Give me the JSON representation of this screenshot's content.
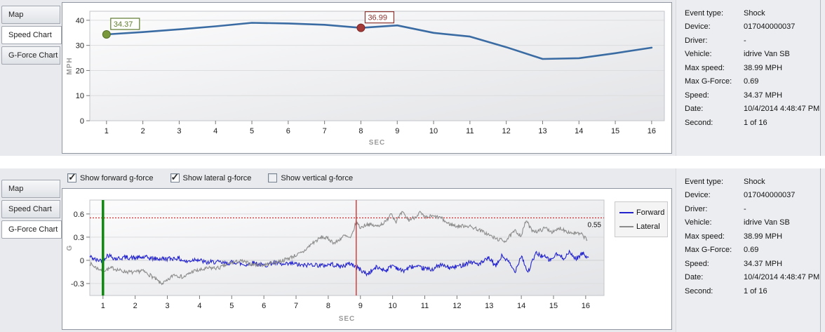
{
  "event_details": {
    "rows": [
      {
        "label": "Event type:",
        "value": "Shock"
      },
      {
        "label": "Device:",
        "value": "017040000037"
      },
      {
        "label": "Driver:",
        "value": "-"
      },
      {
        "label": "Vehicle:",
        "value": "idrive Van SB"
      },
      {
        "label": "Max speed:",
        "value": "38.99 MPH"
      },
      {
        "label": "Max G-Force:",
        "value": "0.69"
      },
      {
        "label": "Speed:",
        "value": "34.37 MPH"
      },
      {
        "label": "Date:",
        "value": "10/4/2014 4:48:47 PM"
      },
      {
        "label": "Second:",
        "value": "1 of 16"
      }
    ]
  },
  "top_panel": {
    "tabs": [
      {
        "label": "Map",
        "selected": false
      },
      {
        "label": "Speed Chart",
        "selected": true
      },
      {
        "label": "G-Force Chart",
        "selected": false
      }
    ],
    "chart_data": {
      "type": "line",
      "xlabel": "SEC",
      "ylabel": "MPH",
      "x": [
        1,
        2,
        3,
        4,
        5,
        6,
        7,
        8,
        9,
        10,
        11,
        12,
        13,
        14,
        15,
        16
      ],
      "values": [
        34.37,
        35.3,
        36.4,
        37.6,
        38.99,
        38.75,
        38.2,
        36.99,
        37.95,
        35.0,
        33.5,
        29.3,
        24.6,
        24.9,
        26.9,
        29.1
      ],
      "line_color": "#3a6ca3",
      "yticks": [
        0,
        10,
        20,
        30,
        40
      ],
      "xlim": [
        0.54,
        16.35
      ],
      "ylim": [
        0,
        43.6
      ],
      "markers": [
        {
          "x": 1,
          "y": 34.37,
          "label": "34.37",
          "fill": "#79973b",
          "stroke": "#55702a",
          "label_color": "#5e7b2e"
        },
        {
          "x": 8,
          "y": 36.99,
          "label": "36.99",
          "fill": "#a33a38",
          "stroke": "#7e2a28",
          "label_color": "#8c3431"
        }
      ]
    }
  },
  "bottom_panel": {
    "tabs": [
      {
        "label": "Map",
        "selected": false
      },
      {
        "label": "Speed Chart",
        "selected": false
      },
      {
        "label": "G-Force Chart",
        "selected": true
      }
    ],
    "checkboxes": [
      {
        "label": "Show forward g-force",
        "checked": true
      },
      {
        "label": "Show lateral g-force",
        "checked": true
      },
      {
        "label": "Show vertical g-force",
        "checked": false
      }
    ],
    "legend": [
      {
        "name": "Forward",
        "color": "#2424cf"
      },
      {
        "name": "Lateral",
        "color": "#8c8c8c"
      }
    ],
    "chart_data": {
      "type": "line",
      "xlabel": "SEC",
      "ylabel": "G",
      "yticks": [
        -0.3,
        0,
        0.3,
        0.6
      ],
      "xticks": [
        1,
        2,
        3,
        4,
        5,
        6,
        7,
        8,
        9,
        10,
        11,
        12,
        13,
        14,
        15,
        16
      ],
      "xlim": [
        0.59,
        16.57
      ],
      "ylim": [
        -0.455,
        0.78
      ],
      "annotations": {
        "green_vline_x": 1.0,
        "green_vline_color": "#0d8a0d",
        "red_vline_x": 8.87,
        "red_vline_color": "#cc2a2a",
        "threshold": {
          "y": 0.55,
          "label": "0.55",
          "color": "#cc0000"
        }
      },
      "series": [
        {
          "name": "Forward",
          "color": "#2424cf",
          "noise": 0.03,
          "seed": 42,
          "range": [
            0.59,
            16.1
          ],
          "keyframes": [
            [
              0.59,
              0.05
            ],
            [
              0.8,
              0.0
            ],
            [
              1.0,
              0.01
            ],
            [
              1.15,
              0.07
            ],
            [
              1.4,
              0.02
            ],
            [
              1.7,
              0.04
            ],
            [
              2.0,
              0.03
            ],
            [
              2.3,
              0.04
            ],
            [
              2.6,
              0.02
            ],
            [
              3.0,
              0.02
            ],
            [
              3.3,
              0.03
            ],
            [
              3.6,
              -0.02
            ],
            [
              3.9,
              0.02
            ],
            [
              4.2,
              -0.03
            ],
            [
              4.5,
              -0.02
            ],
            [
              4.8,
              -0.04
            ],
            [
              5.1,
              -0.02
            ],
            [
              5.4,
              -0.06
            ],
            [
              5.7,
              -0.03
            ],
            [
              6.0,
              -0.07
            ],
            [
              6.3,
              -0.03
            ],
            [
              6.6,
              -0.06
            ],
            [
              6.9,
              -0.04
            ],
            [
              7.2,
              -0.07
            ],
            [
              7.5,
              -0.05
            ],
            [
              7.8,
              -0.07
            ],
            [
              8.1,
              -0.05
            ],
            [
              8.4,
              -0.08
            ],
            [
              8.7,
              -0.04
            ],
            [
              9.0,
              -0.12
            ],
            [
              9.2,
              -0.18
            ],
            [
              9.5,
              -0.09
            ],
            [
              9.8,
              -0.13
            ],
            [
              10.0,
              -0.06
            ],
            [
              10.3,
              -0.14
            ],
            [
              10.6,
              -0.08
            ],
            [
              10.9,
              -0.1
            ],
            [
              11.2,
              -0.12
            ],
            [
              11.5,
              -0.06
            ],
            [
              11.8,
              -0.1
            ],
            [
              12.1,
              -0.07
            ],
            [
              12.4,
              -0.02
            ],
            [
              12.7,
              -0.05
            ],
            [
              13.0,
              0.03
            ],
            [
              13.2,
              -0.08
            ],
            [
              13.4,
              0.06
            ],
            [
              13.6,
              -0.02
            ],
            [
              13.8,
              -0.15
            ],
            [
              14.0,
              0.07
            ],
            [
              14.2,
              -0.16
            ],
            [
              14.45,
              0.09
            ],
            [
              14.7,
              0.05
            ],
            [
              14.9,
              0.0
            ],
            [
              15.1,
              0.08
            ],
            [
              15.3,
              0.03
            ],
            [
              15.5,
              0.1
            ],
            [
              15.7,
              0.02
            ],
            [
              15.9,
              0.09
            ],
            [
              16.1,
              0.04
            ]
          ]
        },
        {
          "name": "Lateral",
          "color": "#8c8c8c",
          "noise": 0.025,
          "seed": 7,
          "range": [
            0.59,
            16.05
          ],
          "keyframes": [
            [
              0.59,
              -0.04
            ],
            [
              0.8,
              -0.1
            ],
            [
              1.0,
              -0.13
            ],
            [
              1.3,
              -0.1
            ],
            [
              1.6,
              -0.14
            ],
            [
              2.0,
              -0.16
            ],
            [
              2.2,
              -0.13
            ],
            [
              2.5,
              -0.2
            ],
            [
              2.8,
              -0.3
            ],
            [
              3.0,
              -0.27
            ],
            [
              3.2,
              -0.18
            ],
            [
              3.5,
              -0.22
            ],
            [
              3.8,
              -0.14
            ],
            [
              4.0,
              -0.13
            ],
            [
              4.3,
              -0.1
            ],
            [
              4.6,
              -0.1
            ],
            [
              5.0,
              -0.03
            ],
            [
              5.3,
              -0.01
            ],
            [
              5.6,
              -0.05
            ],
            [
              6.0,
              -0.06
            ],
            [
              6.3,
              -0.03
            ],
            [
              6.6,
              0.0
            ],
            [
              6.9,
              0.05
            ],
            [
              7.2,
              0.1
            ],
            [
              7.5,
              0.22
            ],
            [
              7.8,
              0.3
            ],
            [
              8.0,
              0.28
            ],
            [
              8.2,
              0.22
            ],
            [
              8.5,
              0.32
            ],
            [
              8.7,
              0.28
            ],
            [
              8.87,
              0.5
            ],
            [
              9.0,
              0.42
            ],
            [
              9.2,
              0.47
            ],
            [
              9.5,
              0.44
            ],
            [
              9.8,
              0.5
            ],
            [
              9.95,
              0.62
            ],
            [
              10.1,
              0.5
            ],
            [
              10.3,
              0.62
            ],
            [
              10.5,
              0.52
            ],
            [
              10.7,
              0.56
            ],
            [
              10.85,
              0.62
            ],
            [
              11.0,
              0.55
            ],
            [
              11.2,
              0.57
            ],
            [
              11.5,
              0.55
            ],
            [
              11.7,
              0.48
            ],
            [
              12.0,
              0.44
            ],
            [
              12.3,
              0.45
            ],
            [
              12.6,
              0.41
            ],
            [
              12.9,
              0.35
            ],
            [
              13.2,
              0.28
            ],
            [
              13.5,
              0.25
            ],
            [
              13.8,
              0.38
            ],
            [
              14.0,
              0.32
            ],
            [
              14.15,
              0.52
            ],
            [
              14.3,
              0.4
            ],
            [
              14.5,
              0.37
            ],
            [
              14.75,
              0.42
            ],
            [
              15.0,
              0.36
            ],
            [
              15.2,
              0.42
            ],
            [
              15.5,
              0.36
            ],
            [
              15.7,
              0.35
            ],
            [
              15.9,
              0.33
            ],
            [
              16.05,
              0.26
            ]
          ]
        }
      ]
    }
  }
}
